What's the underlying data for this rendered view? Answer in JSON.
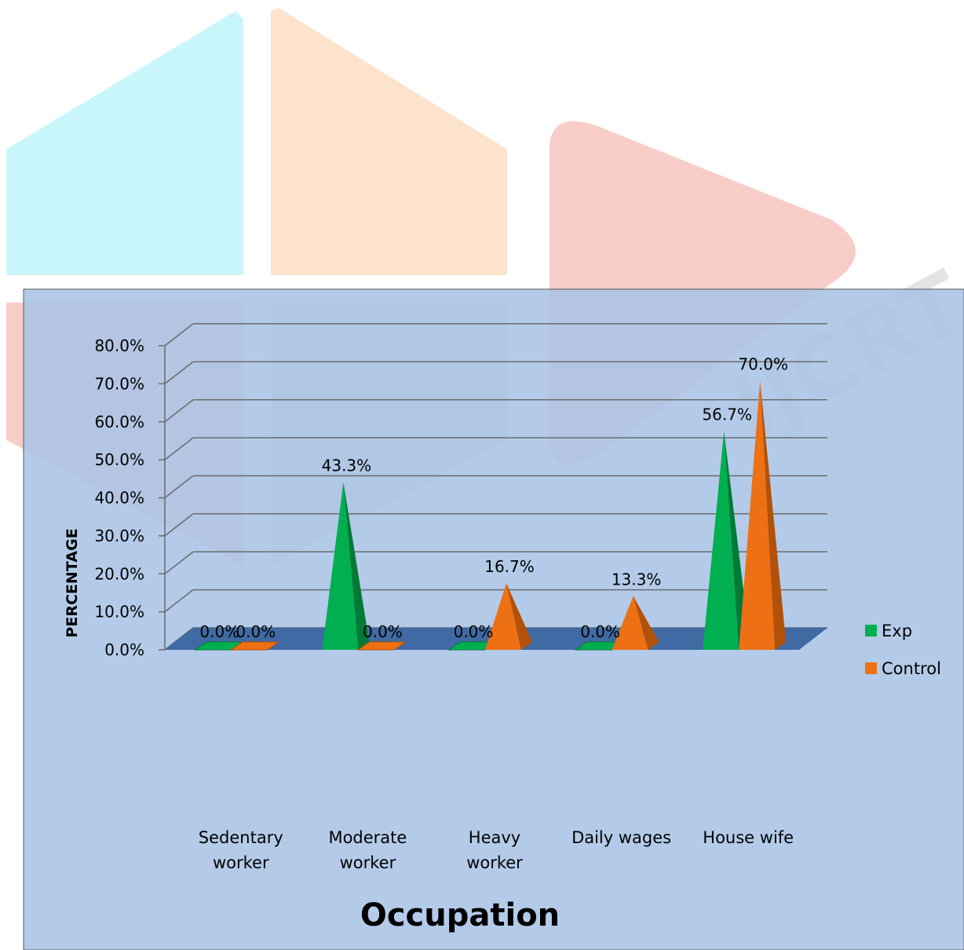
{
  "watermark": {
    "text": "IJCRT",
    "colors": {
      "cyan": "#c9f6fb",
      "peach": "#fde3cc",
      "pink": "#f8cdc7",
      "gray": "#e4e4e4"
    }
  },
  "colors": {
    "plot_background": "#a8c4e6",
    "floor": "#3f6aa3",
    "gridline": "#6b6b6b",
    "exp": "#00b050",
    "exp_dark": "#007a37",
    "control": "#ed7014",
    "control_dark": "#b25108"
  },
  "chart_data": {
    "type": "bar",
    "title": "",
    "xlabel": "Occupation",
    "ylabel": "PERCENTAGE",
    "ylim": [
      0,
      80
    ],
    "yticks": [
      "0.0%",
      "10.0%",
      "20.0%",
      "30.0%",
      "40.0%",
      "50.0%",
      "60.0%",
      "70.0%",
      "80.0%"
    ],
    "categories": [
      [
        "Sedentary",
        "worker"
      ],
      [
        "Moderate",
        "worker"
      ],
      [
        "Heavy",
        "worker"
      ],
      [
        "Daily wages"
      ],
      [
        "House wife"
      ]
    ],
    "series": [
      {
        "name": "Exp",
        "values": [
          0.0,
          43.3,
          0.0,
          0.0,
          56.7
        ],
        "labels": [
          "0.0%",
          "43.3%",
          "0.0%",
          "0.0%",
          "56.7%"
        ]
      },
      {
        "name": "Control",
        "values": [
          0.0,
          0.0,
          16.7,
          13.3,
          70.0
        ],
        "labels": [
          "0.0%",
          "0.0%",
          "16.7%",
          "13.3%",
          "70.0%"
        ]
      }
    ],
    "grid": true,
    "legend_position": "right",
    "style": "3d-pyramid"
  }
}
